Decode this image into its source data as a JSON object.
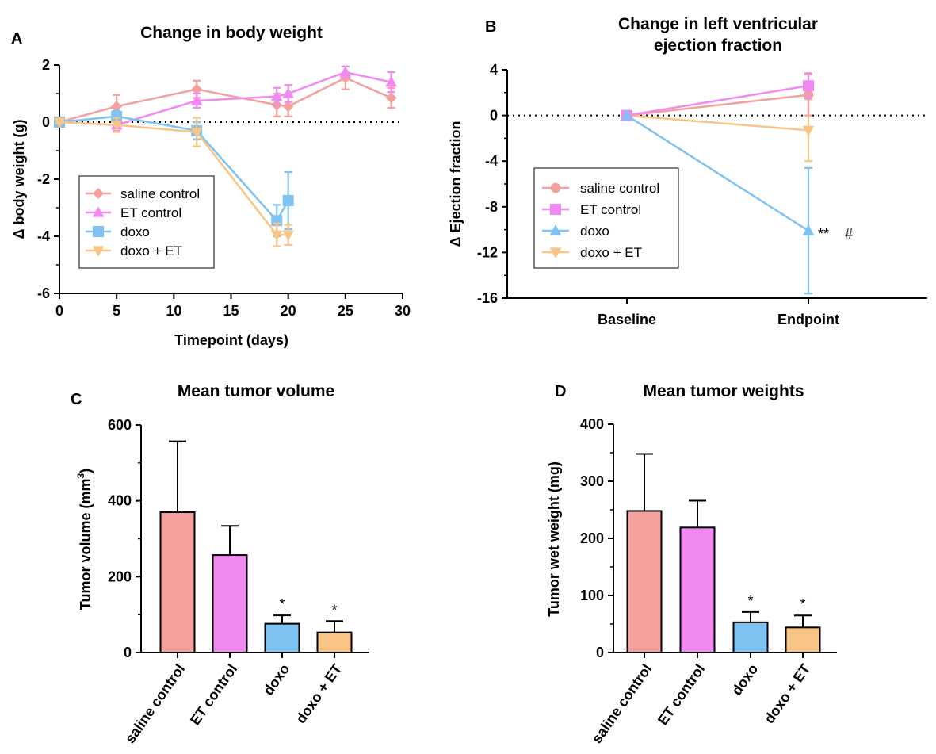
{
  "colors": {
    "saline": "#F4A09C",
    "et": "#F18AF0",
    "doxo": "#7EC3F2",
    "doxoEt": "#F9C587"
  },
  "chart_data": [
    {
      "panel": "A",
      "type": "line",
      "title": "Change in body weight",
      "xlabel": "Timepoint (days)",
      "ylabel": "Δ body weight (g)",
      "xlim": [
        0,
        30
      ],
      "ylim": [
        -6,
        2
      ],
      "xticks": [
        0,
        5,
        10,
        15,
        20,
        25,
        30
      ],
      "yticks": [
        -6,
        -4,
        -2,
        0,
        2
      ],
      "reference_line": 0,
      "legend": "lower-left",
      "series": [
        {
          "name": "saline control",
          "marker": "diamond",
          "color": "#F4A09C",
          "x": [
            0,
            5,
            12,
            19,
            20,
            25,
            29
          ],
          "y": [
            0,
            0.55,
            1.15,
            0.6,
            0.55,
            1.55,
            0.85
          ],
          "err": [
            0.05,
            0.4,
            0.3,
            0.4,
            0.35,
            0.4,
            0.35
          ]
        },
        {
          "name": "ET control",
          "marker": "triangle-up",
          "color": "#F18AF0",
          "x": [
            0,
            5,
            12,
            19,
            20,
            25,
            29
          ],
          "y": [
            0,
            -0.1,
            0.75,
            0.9,
            1.0,
            1.75,
            1.4
          ],
          "err": [
            0.05,
            0.2,
            0.25,
            0.3,
            0.3,
            0.2,
            0.35
          ]
        },
        {
          "name": "doxo",
          "marker": "square",
          "color": "#7EC3F2",
          "x": [
            0,
            5,
            12,
            19,
            20
          ],
          "y": [
            0,
            0.2,
            -0.3,
            -3.45,
            -2.75
          ],
          "err": [
            0.05,
            0.2,
            0.3,
            0.55,
            1.0
          ]
        },
        {
          "name": "doxo + ET",
          "marker": "triangle-down",
          "color": "#F9C587",
          "x": [
            0,
            5,
            12,
            19,
            20
          ],
          "y": [
            0,
            -0.1,
            -0.35,
            -3.95,
            -3.95
          ],
          "err": [
            0.05,
            0.25,
            0.5,
            0.4,
            0.35
          ]
        }
      ]
    },
    {
      "panel": "B",
      "type": "line",
      "title": [
        "Change in left ventricular",
        "ejection fraction"
      ],
      "xlabel": "",
      "ylabel": "Δ Ejection fraction",
      "categories": [
        "Baseline",
        "Endpoint"
      ],
      "ylim": [
        -16,
        4
      ],
      "yticks": [
        -16,
        -12,
        -8,
        -4,
        0,
        4
      ],
      "reference_line": 0,
      "legend": "lower-left",
      "annotations": [
        {
          "text": "**",
          "at": "doxo endpoint"
        },
        {
          "text": "#",
          "at": "doxo endpoint"
        }
      ],
      "series": [
        {
          "name": "saline control",
          "marker": "circle",
          "color": "#F4A09C",
          "values": [
            0,
            1.8
          ],
          "err": [
            0,
            1.8
          ]
        },
        {
          "name": "ET control",
          "marker": "square",
          "color": "#F18AF0",
          "values": [
            0,
            2.6
          ],
          "err": [
            0,
            1.1
          ]
        },
        {
          "name": "doxo",
          "marker": "triangle-up",
          "color": "#7EC3F2",
          "values": [
            0,
            -10.1
          ],
          "err": [
            0,
            5.5
          ]
        },
        {
          "name": "doxo + ET",
          "marker": "triangle-down",
          "color": "#F9C587",
          "values": [
            0,
            -1.3
          ],
          "err": [
            0,
            2.7
          ]
        }
      ]
    },
    {
      "panel": "C",
      "type": "bar",
      "title": "Mean tumor volume",
      "ylabel": "Tumor volume (mm",
      "ylabel_sup": "3",
      "ylabel_end": ")",
      "ylim": [
        0,
        600
      ],
      "yticks": [
        0,
        200,
        400,
        600
      ],
      "categories": [
        "saline control",
        "ET control",
        "doxo",
        "doxo + ET"
      ],
      "values": [
        370,
        257,
        76,
        53
      ],
      "err": [
        187,
        77,
        22,
        30
      ],
      "significance": [
        "",
        "",
        "*",
        "*"
      ]
    },
    {
      "panel": "D",
      "type": "bar",
      "title": "Mean tumor weights",
      "ylabel": "Tumor wet weight (mg)",
      "ylim": [
        0,
        400
      ],
      "yticks": [
        0,
        100,
        200,
        300,
        400
      ],
      "categories": [
        "saline control",
        "ET control",
        "doxo",
        "doxo + ET"
      ],
      "values": [
        248,
        219,
        53,
        44
      ],
      "err": [
        100,
        47,
        18,
        21
      ],
      "significance": [
        "",
        "",
        "*",
        "*"
      ]
    }
  ]
}
